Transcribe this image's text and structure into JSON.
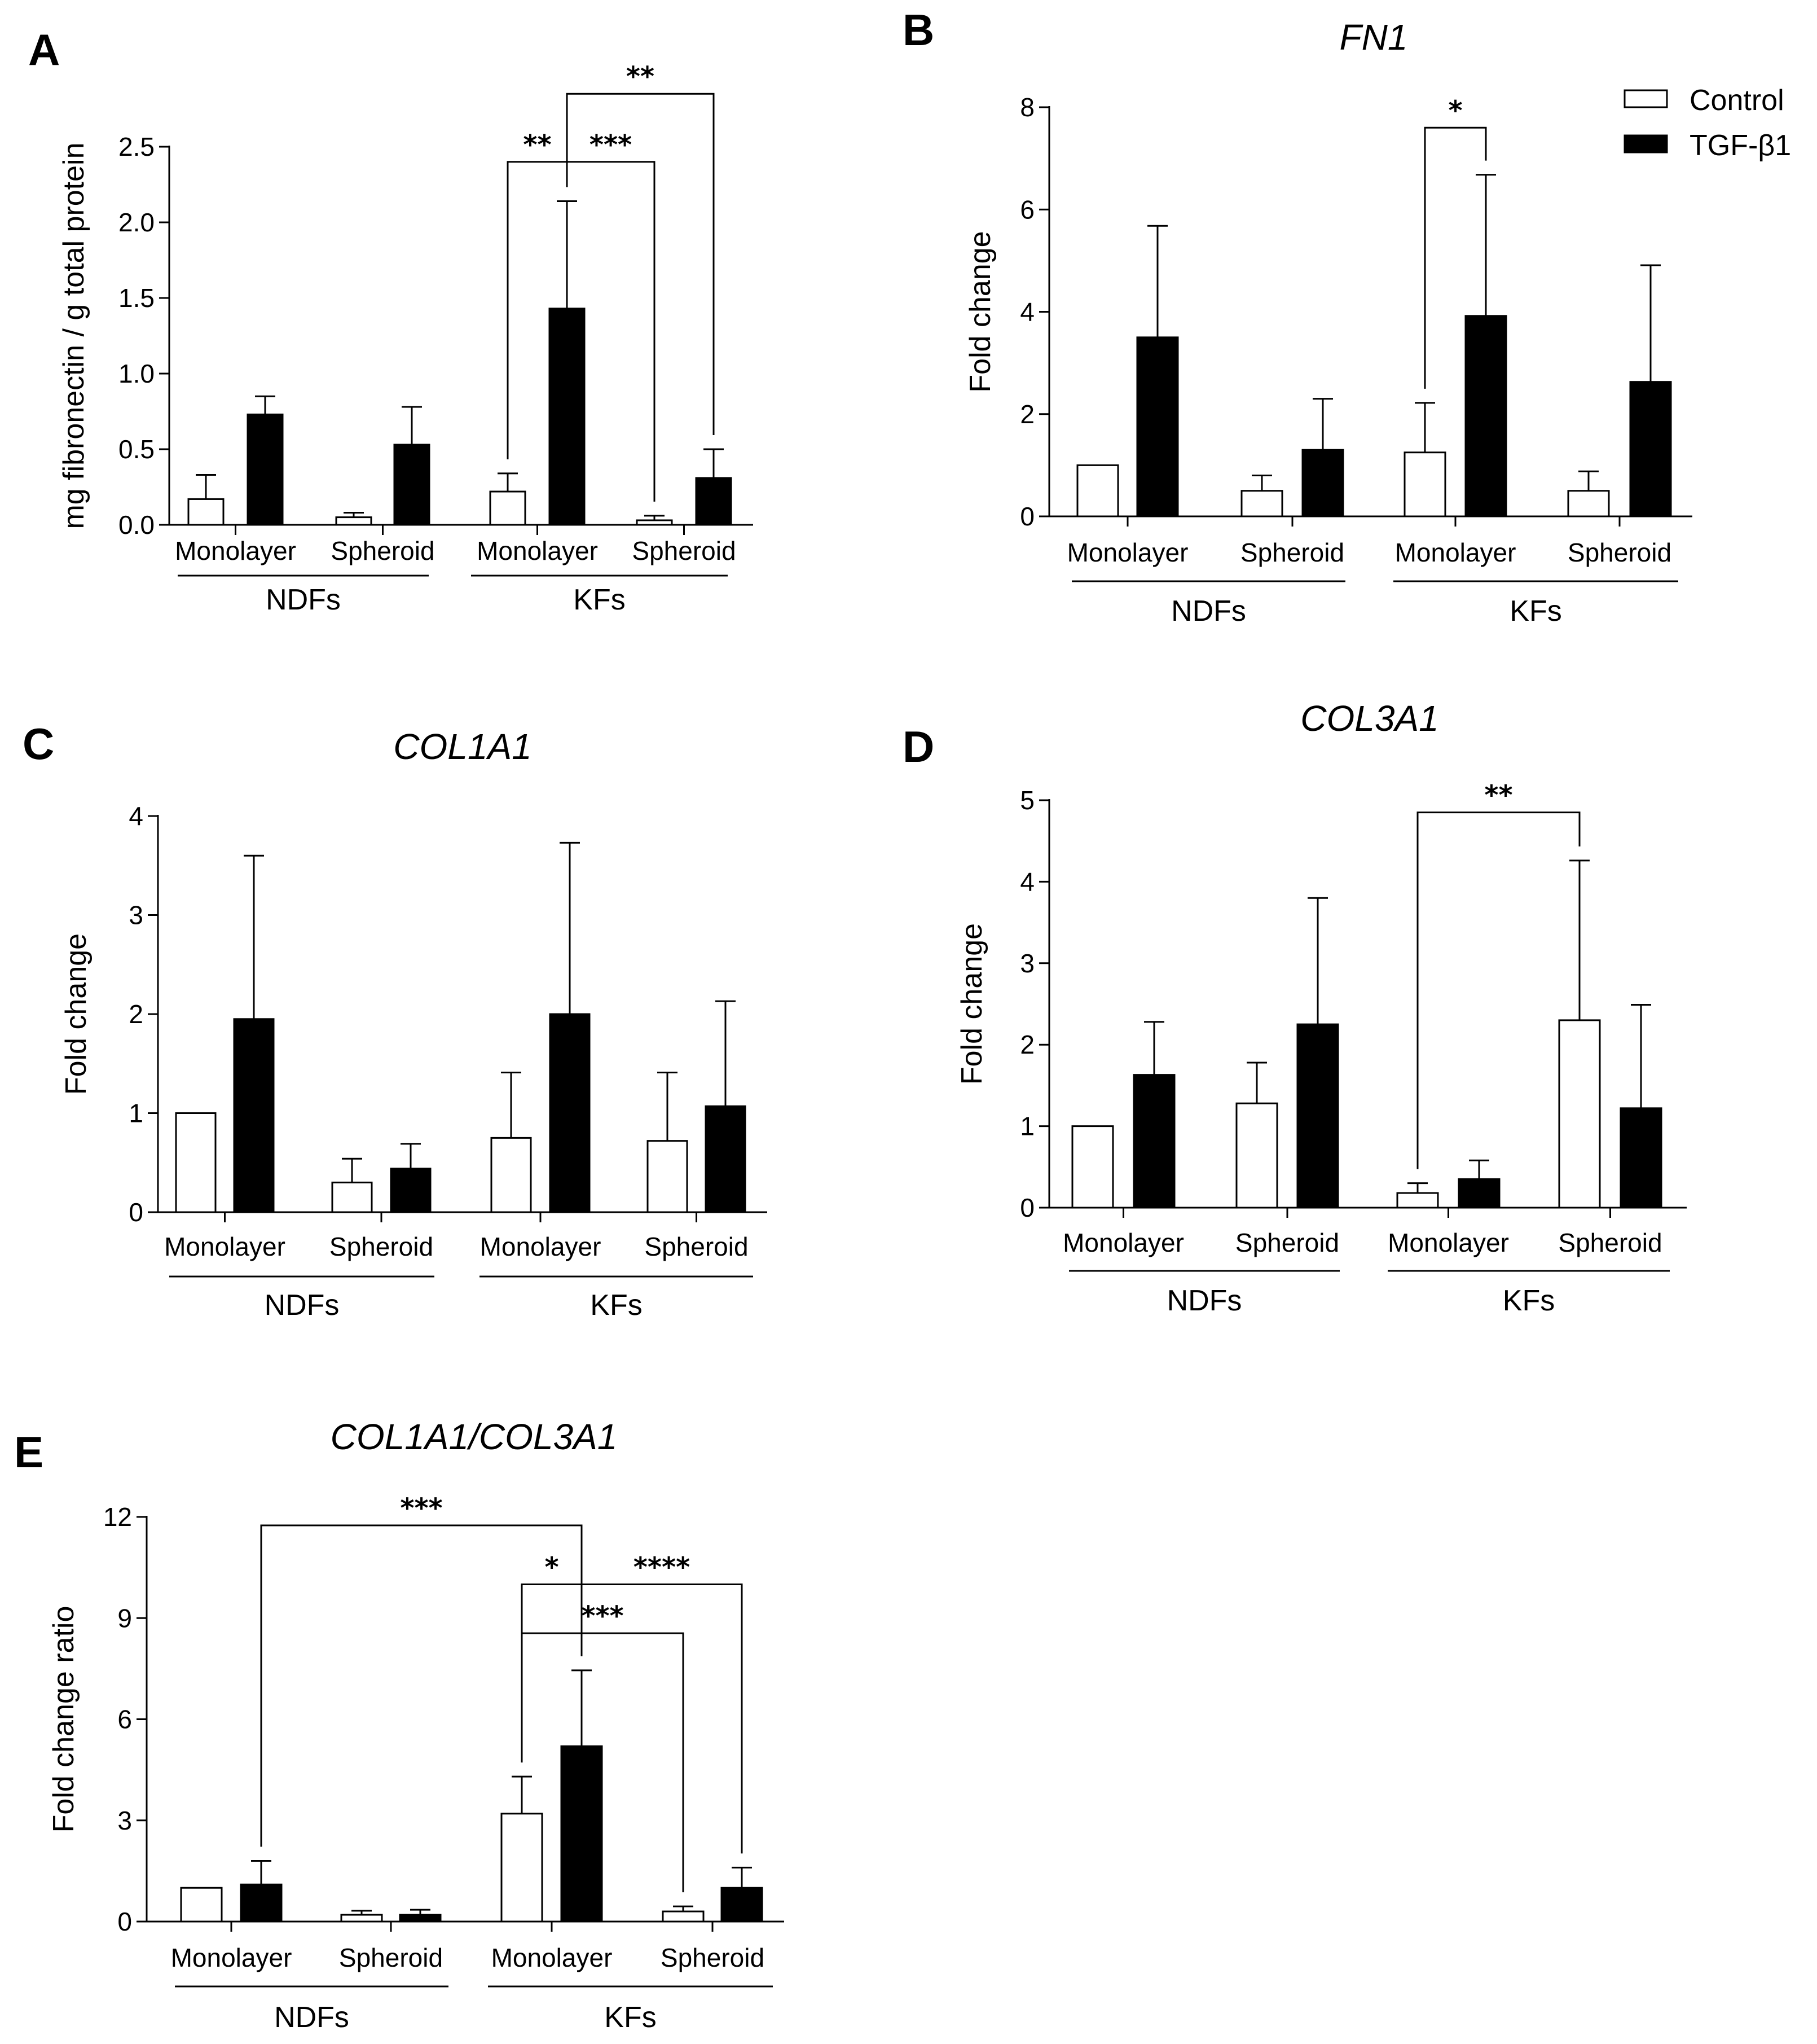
{
  "legend": [
    {
      "label": "Control",
      "fill": "#ffffff"
    },
    {
      "label": "TGF-β1",
      "fill": "#000000"
    }
  ],
  "chart_data": [
    {
      "panel": "A",
      "type": "bar",
      "title": "",
      "ylabel": "mg fibronectin / g total protein",
      "ylim": [
        0,
        2.5
      ],
      "yticks": [
        "0.0",
        "0.5",
        "1.0",
        "1.5",
        "2.0",
        "2.5"
      ],
      "ytick_values": [
        0,
        0.5,
        1.0,
        1.5,
        2.0,
        2.5
      ],
      "categories": [
        "Monolayer",
        "Spheroid",
        "Monolayer",
        "Spheroid"
      ],
      "groups": [
        "NDFs",
        "KFs"
      ],
      "series": [
        {
          "name": "Control",
          "values": [
            0.17,
            0.05,
            0.22,
            0.03
          ],
          "errors": [
            0.16,
            0.03,
            0.12,
            0.03
          ]
        },
        {
          "name": "TGF-β1",
          "values": [
            0.73,
            0.53,
            1.43,
            0.31
          ],
          "errors": [
            0.12,
            0.25,
            0.71,
            0.19
          ]
        }
      ],
      "significance": [
        {
          "stars": "**",
          "from": [
            2,
            0
          ],
          "to": [
            2,
            1
          ],
          "y": 2.4,
          "tick_from": 2.4,
          "tick_to": 2.4
        },
        {
          "stars": "***",
          "from": [
            2,
            1
          ],
          "to": [
            3,
            0
          ],
          "y": 2.4
        },
        {
          "stars": "**",
          "from": [
            2,
            1
          ],
          "to": [
            3,
            1
          ],
          "y": 2.85
        }
      ]
    },
    {
      "panel": "B",
      "type": "bar",
      "title": "FN1",
      "ylabel": "Fold change",
      "ylim": [
        0,
        8
      ],
      "yticks": [
        "0",
        "2",
        "4",
        "6",
        "8"
      ],
      "ytick_values": [
        0,
        2,
        4,
        6,
        8
      ],
      "categories": [
        "Monolayer",
        "Spheroid",
        "Monolayer",
        "Spheroid"
      ],
      "groups": [
        "NDFs",
        "KFs"
      ],
      "series": [
        {
          "name": "Control",
          "values": [
            1.0,
            0.5,
            1.25,
            0.5
          ],
          "errors": [
            0,
            0.3,
            0.97,
            0.38
          ]
        },
        {
          "name": "TGF-β1",
          "values": [
            3.5,
            1.3,
            3.92,
            2.63
          ],
          "errors": [
            2.18,
            1.0,
            2.76,
            2.28
          ]
        }
      ],
      "significance": [
        {
          "stars": "*",
          "from": [
            2,
            0
          ],
          "to": [
            2,
            1
          ],
          "y": 7.6
        }
      ]
    },
    {
      "panel": "C",
      "type": "bar",
      "title": "COL1A1",
      "ylabel": "Fold change",
      "ylim": [
        0,
        4
      ],
      "yticks": [
        "0",
        "1",
        "2",
        "3",
        "4"
      ],
      "ytick_values": [
        0,
        1,
        2,
        3,
        4
      ],
      "categories": [
        "Monolayer",
        "Spheroid",
        "Monolayer",
        "Spheroid"
      ],
      "groups": [
        "NDFs",
        "KFs"
      ],
      "series": [
        {
          "name": "Control",
          "values": [
            1.0,
            0.3,
            0.75,
            0.72
          ],
          "errors": [
            0,
            0.24,
            0.66,
            0.69
          ]
        },
        {
          "name": "TGF-β1",
          "values": [
            1.95,
            0.44,
            2.0,
            1.07
          ],
          "errors": [
            1.65,
            0.25,
            1.73,
            1.06
          ]
        }
      ],
      "significance": []
    },
    {
      "panel": "D",
      "type": "bar",
      "title": "COL3A1",
      "ylabel": "Fold change",
      "ylim": [
        0,
        5
      ],
      "yticks": [
        "0",
        "1",
        "2",
        "3",
        "4",
        "5"
      ],
      "ytick_values": [
        0,
        1,
        2,
        3,
        4,
        5
      ],
      "categories": [
        "Monolayer",
        "Spheroid",
        "Monolayer",
        "Spheroid"
      ],
      "groups": [
        "NDFs",
        "KFs"
      ],
      "series": [
        {
          "name": "Control",
          "values": [
            1.0,
            1.28,
            0.18,
            2.3
          ],
          "errors": [
            0,
            0.5,
            0.12,
            1.96
          ]
        },
        {
          "name": "TGF-β1",
          "values": [
            1.63,
            2.25,
            0.35,
            1.22
          ],
          "errors": [
            0.65,
            1.55,
            0.23,
            1.27
          ]
        }
      ],
      "significance": [
        {
          "stars": "**",
          "from": [
            2,
            0
          ],
          "to": [
            3,
            0
          ],
          "y": 4.85
        }
      ]
    },
    {
      "panel": "E",
      "type": "bar",
      "title": "COL1A1/COL3A1",
      "ylabel": "Fold change ratio",
      "ylim": [
        0,
        12
      ],
      "yticks": [
        "0",
        "3",
        "6",
        "9",
        "12"
      ],
      "ytick_values": [
        0,
        3,
        6,
        9,
        12
      ],
      "categories": [
        "Monolayer",
        "Spheroid",
        "Monolayer",
        "Spheroid"
      ],
      "groups": [
        "NDFs",
        "KFs"
      ],
      "series": [
        {
          "name": "Control",
          "values": [
            1.0,
            0.2,
            3.2,
            0.3
          ],
          "errors": [
            0,
            0.12,
            1.1,
            0.15
          ]
        },
        {
          "name": "TGF-β1",
          "values": [
            1.1,
            0.2,
            5.2,
            1.0
          ],
          "errors": [
            0.7,
            0.15,
            2.25,
            0.6
          ]
        }
      ],
      "significance": [
        {
          "stars": "***",
          "from": [
            0,
            1
          ],
          "to": [
            2,
            1
          ],
          "y": 11.75
        },
        {
          "stars": "*",
          "from": [
            2,
            0
          ],
          "to": [
            2,
            1
          ],
          "y": 10.0
        },
        {
          "stars": "****",
          "from": [
            2,
            1
          ],
          "to": [
            3,
            1
          ],
          "y": 10.0
        },
        {
          "stars": "***",
          "from": [
            2,
            0
          ],
          "to": [
            3,
            0
          ],
          "y": 8.55
        }
      ]
    }
  ]
}
